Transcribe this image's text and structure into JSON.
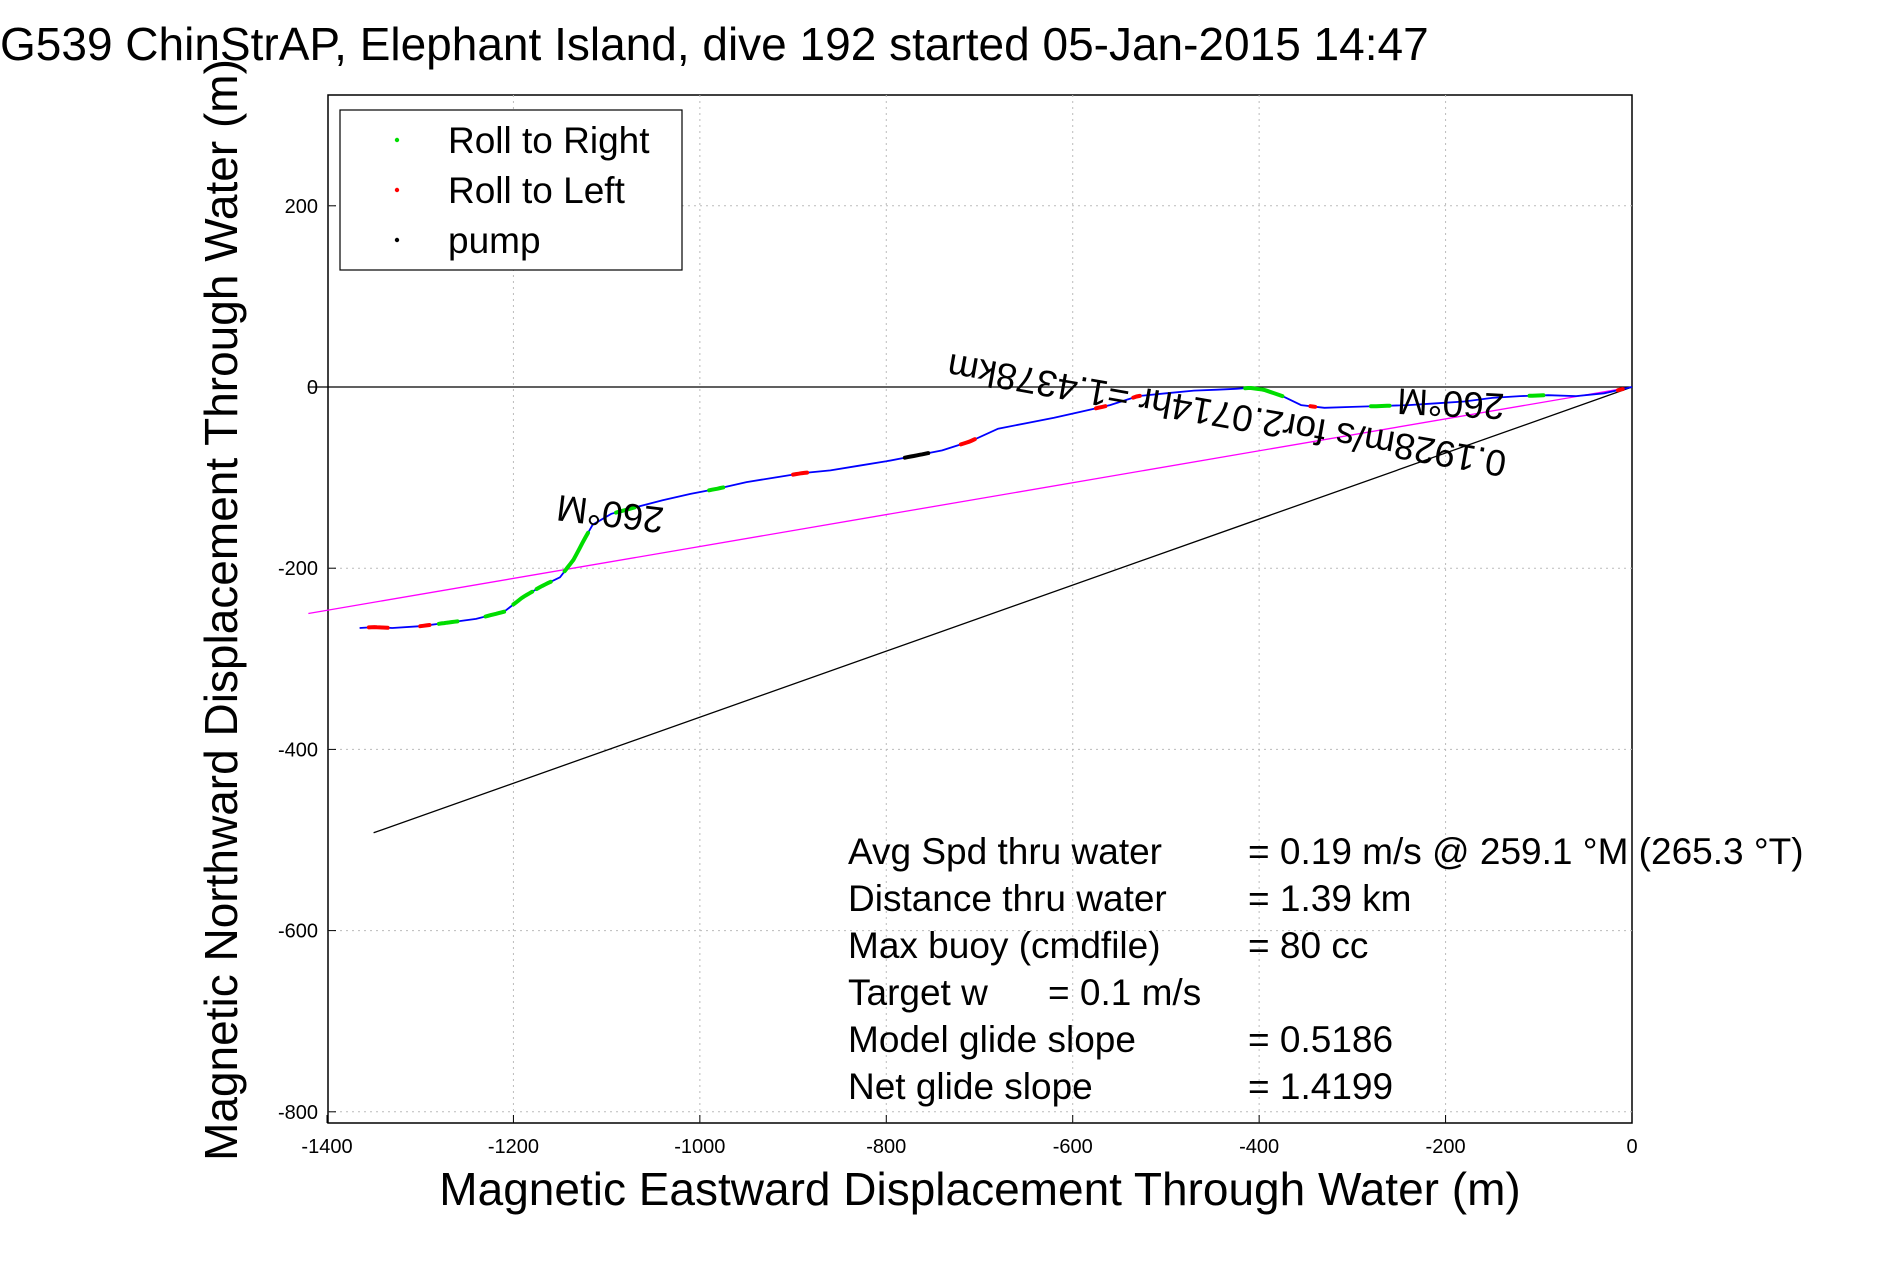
{
  "chart_data": {
    "type": "line",
    "title": "G539 ChinStrAP, Elephant Island, dive 192 started 05-Jan-2015 14:47",
    "xlabel": "Magnetic Eastward Displacement Through Water (m)",
    "ylabel": "Magnetic Northward Displacement Through Water (m)",
    "xlim": [
      -1420,
      0
    ],
    "ylim": [
      -810,
      320
    ],
    "x_ticks": [
      -1400,
      -1200,
      -1000,
      -800,
      -600,
      -400,
      -200,
      0
    ],
    "y_ticks": [
      200,
      0,
      -200,
      -400,
      -600,
      -800
    ],
    "grid": true,
    "legend_position": "top-left",
    "legend": [
      {
        "label": "Roll to Right",
        "color": "#00dd00"
      },
      {
        "label": "Roll to Left",
        "color": "#ff0000"
      },
      {
        "label": "pump",
        "color": "#000000"
      }
    ],
    "track": {
      "color": "#0000ff",
      "points": [
        [
          0,
          0
        ],
        [
          -30,
          -7
        ],
        [
          -60,
          -10
        ],
        [
          -90,
          -9
        ],
        [
          -120,
          -10
        ],
        [
          -150,
          -12
        ],
        [
          -180,
          -16
        ],
        [
          -210,
          -18
        ],
        [
          -240,
          -20
        ],
        [
          -270,
          -21
        ],
        [
          -300,
          -22
        ],
        [
          -330,
          -23
        ],
        [
          -355,
          -20
        ],
        [
          -375,
          -10
        ],
        [
          -395,
          -3
        ],
        [
          -410,
          -1
        ],
        [
          -425,
          -2
        ],
        [
          -445,
          -3
        ],
        [
          -470,
          -4
        ],
        [
          -500,
          -7
        ],
        [
          -530,
          -10
        ],
        [
          -560,
          -20
        ],
        [
          -590,
          -27
        ],
        [
          -620,
          -34
        ],
        [
          -650,
          -40
        ],
        [
          -680,
          -46
        ],
        [
          -710,
          -60
        ],
        [
          -740,
          -70
        ],
        [
          -770,
          -76
        ],
        [
          -800,
          -82
        ],
        [
          -830,
          -87
        ],
        [
          -860,
          -92
        ],
        [
          -890,
          -95
        ],
        [
          -920,
          -100
        ],
        [
          -950,
          -105
        ],
        [
          -980,
          -112
        ],
        [
          -1010,
          -118
        ],
        [
          -1040,
          -125
        ],
        [
          -1070,
          -133
        ],
        [
          -1095,
          -140
        ],
        [
          -1115,
          -152
        ],
        [
          -1125,
          -170
        ],
        [
          -1135,
          -190
        ],
        [
          -1150,
          -210
        ],
        [
          -1170,
          -220
        ],
        [
          -1190,
          -232
        ],
        [
          -1210,
          -248
        ],
        [
          -1240,
          -256
        ],
        [
          -1270,
          -260
        ],
        [
          -1300,
          -264
        ],
        [
          -1330,
          -266
        ],
        [
          -1350,
          -265
        ],
        [
          -1365,
          -266
        ]
      ]
    },
    "roll_right_segments": [
      [
        -1090,
        -1070
      ],
      [
        -990,
        -975
      ],
      [
        -1145,
        -1120
      ],
      [
        -1175,
        -1160
      ],
      [
        -1200,
        -1180
      ],
      [
        -1280,
        -1260
      ],
      [
        -415,
        -375
      ],
      [
        -1230,
        -1210
      ],
      [
        -280,
        -260
      ],
      [
        -110,
        -95
      ]
    ],
    "roll_left_segments": [
      [
        -1355,
        -1335
      ],
      [
        -1300,
        -1290
      ],
      [
        -900,
        -885
      ],
      [
        -720,
        -705
      ],
      [
        -575,
        -565
      ],
      [
        -535,
        -528
      ],
      [
        -345,
        -340
      ],
      [
        -15,
        -10
      ]
    ],
    "pump_segments": [
      [
        -780,
        -755
      ]
    ],
    "reference_lines": [
      {
        "name": "magenta",
        "color": "#ff00ff",
        "from": [
          0,
          0
        ],
        "to": [
          -1420,
          -250
        ]
      },
      {
        "name": "black",
        "color": "#000000",
        "from": [
          0,
          0
        ],
        "to": [
          -1350,
          -492
        ]
      },
      {
        "name": "zero",
        "color": "#000000",
        "from": [
          -1420,
          0
        ],
        "to": [
          0,
          0
        ]
      }
    ],
    "annotations": {
      "heading_right": "260°M",
      "heading_left": "260°M",
      "speed_note": "0.1928m/s for2.0714hr =1.4378km"
    },
    "stats": [
      {
        "label": "Avg Spd thru water",
        "value": "=  0.19 m/s @ 259.1 °M (265.3 °T)"
      },
      {
        "label": "Distance thru water",
        "value": "=  1.39 km"
      },
      {
        "label": "Max buoy (cmdfile)",
        "value": "= 80 cc"
      },
      {
        "label": "Target w",
        "value": "= 0.1 m/s"
      },
      {
        "label": "Model glide slope",
        "value": "= 0.5186"
      },
      {
        "label": "Net glide slope",
        "value": "= 1.4199"
      }
    ]
  }
}
